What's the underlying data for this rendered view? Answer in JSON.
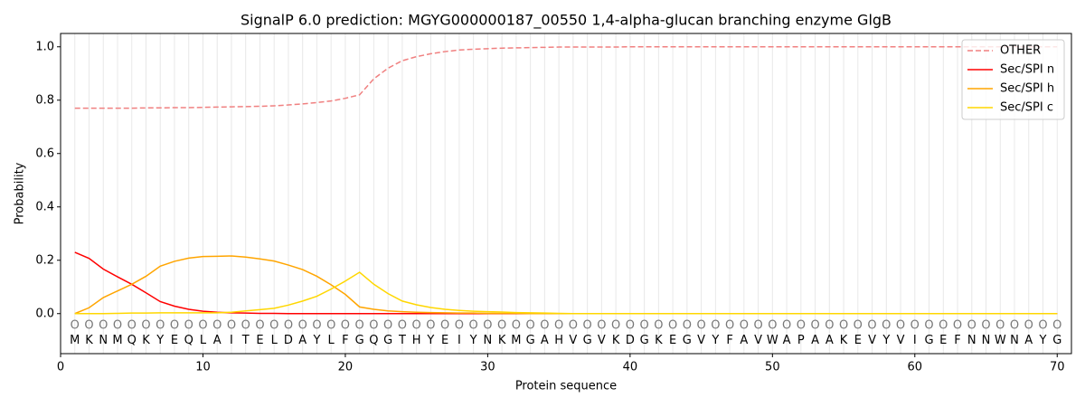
{
  "chart_data": {
    "type": "line",
    "title": "SignalP 6.0 prediction: MGYG000000187_00550 1,4-alpha-glucan branching enzyme GlgB",
    "x_label": "Protein sequence",
    "y_label": "Probability",
    "x": [
      1,
      2,
      3,
      4,
      5,
      6,
      7,
      8,
      9,
      10,
      11,
      12,
      13,
      14,
      15,
      16,
      17,
      18,
      19,
      20,
      21,
      22,
      23,
      24,
      25,
      26,
      27,
      28,
      29,
      30,
      31,
      32,
      33,
      34,
      35,
      36,
      37,
      38,
      39,
      40,
      41,
      42,
      43,
      44,
      45,
      46,
      47,
      48,
      49,
      50,
      51,
      52,
      53,
      54,
      55,
      56,
      57,
      58,
      59,
      60,
      61,
      62,
      63,
      64,
      65,
      66,
      67,
      68,
      69,
      70
    ],
    "sequence": [
      "M",
      "K",
      "N",
      "M",
      "Q",
      "K",
      "Y",
      "E",
      "Q",
      "L",
      "A",
      "I",
      "T",
      "E",
      "L",
      "D",
      "A",
      "Y",
      "L",
      "F",
      "G",
      "Q",
      "G",
      "T",
      "H",
      "Y",
      "E",
      "I",
      "Y",
      "N",
      "K",
      "M",
      "G",
      "A",
      "H",
      "V",
      "G",
      "V",
      "K",
      "D",
      "G",
      "K",
      "E",
      "G",
      "V",
      "Y",
      "F",
      "A",
      "V",
      "W",
      "A",
      "P",
      "A",
      "A",
      "K",
      "E",
      "V",
      "Y",
      "V",
      "I",
      "G",
      "E",
      "F",
      "N",
      "N",
      "W",
      "N",
      "A",
      "Y",
      "G"
    ],
    "labels": [
      "O",
      "O",
      "O",
      "O",
      "O",
      "O",
      "O",
      "O",
      "O",
      "O",
      "O",
      "O",
      "O",
      "O",
      "O",
      "O",
      "O",
      "O",
      "O",
      "O",
      "O",
      "O",
      "O",
      "O",
      "O",
      "O",
      "O",
      "O",
      "O",
      "O",
      "O",
      "O",
      "O",
      "O",
      "O",
      "O",
      "O",
      "O",
      "O",
      "O",
      "O",
      "O",
      "O",
      "O",
      "O",
      "O",
      "O",
      "O",
      "O",
      "O",
      "O",
      "O",
      "O",
      "O",
      "O",
      "O",
      "O",
      "O",
      "O",
      "O",
      "O",
      "O",
      "O",
      "O",
      "O",
      "O",
      "O",
      "O",
      "O",
      "O"
    ],
    "series": [
      {
        "name": "OTHER",
        "color": "#f08080",
        "dashed": true,
        "values": [
          0.77,
          0.77,
          0.77,
          0.77,
          0.77,
          0.771,
          0.771,
          0.772,
          0.772,
          0.773,
          0.774,
          0.775,
          0.776,
          0.777,
          0.779,
          0.782,
          0.786,
          0.791,
          0.797,
          0.807,
          0.82,
          0.88,
          0.92,
          0.948,
          0.963,
          0.974,
          0.982,
          0.988,
          0.991,
          0.993,
          0.995,
          0.996,
          0.997,
          0.998,
          0.999,
          0.999,
          0.999,
          0.999,
          0.999,
          1,
          1,
          1,
          1,
          1,
          1,
          1,
          1,
          1,
          1,
          1,
          1,
          1,
          1,
          1,
          1,
          1,
          1,
          1,
          1,
          1,
          1,
          1,
          1,
          1,
          1,
          1,
          1,
          1,
          1,
          1
        ]
      },
      {
        "name": "Sec/SPI n",
        "color": "#ff0000",
        "dashed": false,
        "values": [
          0.23,
          0.207,
          0.167,
          0.138,
          0.11,
          0.078,
          0.045,
          0.028,
          0.016,
          0.009,
          0.005,
          0.003,
          0.002,
          0.001,
          0.001,
          0,
          0,
          0,
          0,
          0,
          0,
          0,
          0,
          0,
          0,
          0,
          0,
          0,
          0,
          0,
          0,
          0,
          0,
          0,
          0,
          0,
          0,
          0,
          0,
          0,
          0,
          0,
          0,
          0,
          0,
          0,
          0,
          0,
          0,
          0,
          0,
          0,
          0,
          0,
          0,
          0,
          0,
          0,
          0,
          0,
          0,
          0,
          0,
          0,
          0,
          0,
          0,
          0,
          0,
          0
        ]
      },
      {
        "name": "Sec/SPI h",
        "color": "#ffa500",
        "dashed": false,
        "values": [
          0,
          0.022,
          0.06,
          0.085,
          0.11,
          0.14,
          0.178,
          0.196,
          0.208,
          0.214,
          0.215,
          0.216,
          0.212,
          0.205,
          0.197,
          0.182,
          0.165,
          0.14,
          0.108,
          0.072,
          0.025,
          0.016,
          0.01,
          0.007,
          0.005,
          0.004,
          0.003,
          0.002,
          0.002,
          0.001,
          0.001,
          0.001,
          0,
          0,
          0,
          0,
          0,
          0,
          0,
          0,
          0,
          0,
          0,
          0,
          0,
          0,
          0,
          0,
          0,
          0,
          0,
          0,
          0,
          0,
          0,
          0,
          0,
          0,
          0,
          0,
          0,
          0,
          0,
          0,
          0,
          0,
          0,
          0,
          0,
          0
        ]
      },
      {
        "name": "Sec/SPI c",
        "color": "#ffd700",
        "dashed": false,
        "values": [
          0,
          0,
          0,
          0.001,
          0.002,
          0.002,
          0.003,
          0.003,
          0.003,
          0.003,
          0.003,
          0.005,
          0.01,
          0.015,
          0.02,
          0.032,
          0.047,
          0.065,
          0.092,
          0.122,
          0.155,
          0.11,
          0.075,
          0.047,
          0.033,
          0.023,
          0.016,
          0.012,
          0.009,
          0.007,
          0.006,
          0.004,
          0.003,
          0.002,
          0.001,
          0,
          0,
          0,
          0,
          0,
          0,
          0,
          0,
          0,
          0,
          0,
          0,
          0,
          0,
          0,
          0,
          0,
          0,
          0,
          0,
          0,
          0,
          0,
          0,
          0,
          0,
          0,
          0,
          0,
          0,
          0,
          0,
          0,
          0,
          0
        ]
      }
    ],
    "xlim": [
      0,
      71
    ],
    "ylim": [
      -0.15,
      1.05
    ],
    "xticks": [
      0,
      10,
      20,
      30,
      40,
      50,
      60,
      70
    ],
    "yticks": [
      {
        "value": 0,
        "label": "0.0"
      },
      0.2,
      0.4,
      0.6,
      0.8,
      {
        "value": 1,
        "label": "1.0"
      }
    ],
    "legend": "upper right"
  }
}
